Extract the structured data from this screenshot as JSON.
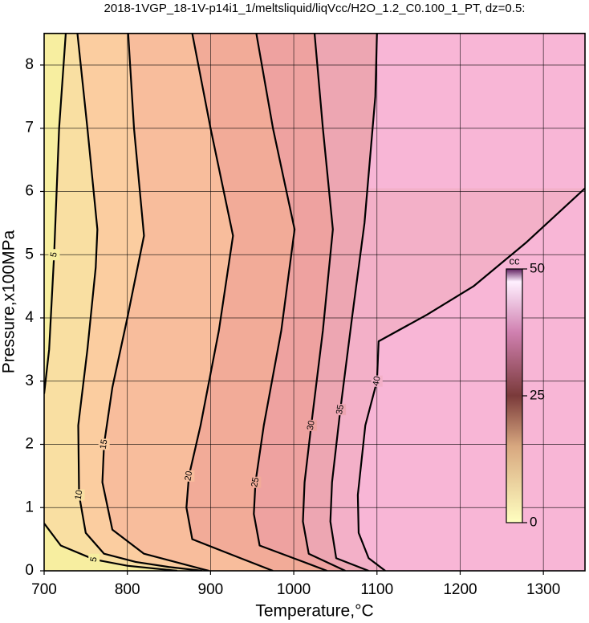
{
  "chart_data": {
    "type": "contour",
    "title": "2018-1VGP_18-1V-p14i1_1/meltsliquid/liqVcc/H2O_1.2_C0.100_1_PT, dz=0.5:",
    "x_label": "Temperature,°C",
    "y_label": "Pressure,x100MPa",
    "xlim": [
      700,
      1350
    ],
    "ylim": [
      0,
      8.5
    ],
    "xticks": [
      700,
      800,
      900,
      1000,
      1100,
      1200,
      1300
    ],
    "yticks": [
      0,
      1,
      2,
      3,
      4,
      5,
      6,
      7,
      8
    ],
    "grid": true,
    "background_color": "#f8b6d6",
    "contours": [
      {
        "level": 40,
        "color": "#f3b0c8",
        "x": [
          1110,
          1090,
          1078,
          1077,
          1086,
          1100,
          1102,
          1160,
          1216,
          1280,
          1350
        ],
        "y": [
          0,
          0.2,
          0.6,
          1.2,
          2.3,
          3.0,
          3.63,
          4.05,
          4.5,
          5.2,
          6.05
        ]
      },
      {
        "level": 35,
        "color": "#eda6b2",
        "x": [
          1100,
          1098,
          1085,
          1070,
          1056,
          1046,
          1044,
          1051,
          1090
        ],
        "y": [
          8.5,
          7.5,
          5.5,
          4.0,
          2.55,
          1.4,
          0.78,
          0.2,
          0
        ]
      },
      {
        "level": 30,
        "color": "#eea2a0",
        "x": [
          1025,
          1035,
          1047,
          1035,
          1021,
          1013,
          1011,
          1018,
          1062
        ],
        "y": [
          8.5,
          7.0,
          5.4,
          3.8,
          2.3,
          1.4,
          0.78,
          0.27,
          0
        ]
      },
      {
        "level": 25,
        "color": "#f2ab98",
        "x": [
          955,
          975,
          1001,
          985,
          964,
          954,
          952,
          959,
          1012,
          1040
        ],
        "y": [
          8.5,
          7.0,
          5.4,
          3.8,
          2.3,
          1.4,
          0.9,
          0.4,
          0.14,
          0
        ]
      },
      {
        "level": 20,
        "color": "#f8bd9c",
        "x": [
          878,
          900,
          927,
          910,
          888,
          874,
          871,
          878,
          936,
          975
        ],
        "y": [
          8.5,
          7.0,
          5.3,
          3.8,
          2.3,
          1.5,
          1.0,
          0.5,
          0.2,
          0
        ]
      },
      {
        "level": 15,
        "color": "#fbcda0",
        "x": [
          801,
          808,
          820,
          800,
          782,
          772,
          770,
          782,
          820,
          898
        ],
        "y": [
          8.5,
          7.0,
          5.3,
          4.0,
          2.9,
          2.0,
          1.4,
          0.65,
          0.27,
          0
        ]
      },
      {
        "level": 10,
        "color": "#f9dfa2",
        "x": [
          740,
          752,
          764,
          762,
          752,
          741,
          742,
          750,
          772,
          810,
          850,
          890
        ],
        "y": [
          8.5,
          7.0,
          5.4,
          4.8,
          3.5,
          2.3,
          1.2,
          0.6,
          0.27,
          0.14,
          0.06,
          0
        ]
      },
      {
        "level": 5,
        "color": "#f7eea0",
        "x": [
          726,
          718,
          712,
          706,
          700,
          null,
          700,
          720,
          760,
          800,
          860
        ],
        "y": [
          8.5,
          7.0,
          5.0,
          3.5,
          2.8,
          null,
          0.75,
          0.4,
          0.18,
          0.08,
          0
        ]
      }
    ],
    "colorbar": {
      "label": "cc",
      "lim": [
        0,
        50
      ],
      "ticks": [
        0,
        25,
        50
      ],
      "colors": [
        {
          "offset": 0,
          "color": "#ffffc0"
        },
        {
          "offset": 0.3,
          "color": "#d8a880"
        },
        {
          "offset": 0.5,
          "color": "#7a3a3a"
        },
        {
          "offset": 0.75,
          "color": "#d080b0"
        },
        {
          "offset": 0.95,
          "color": "#fff0ff"
        },
        {
          "offset": 1,
          "color": "#602060"
        }
      ]
    }
  }
}
